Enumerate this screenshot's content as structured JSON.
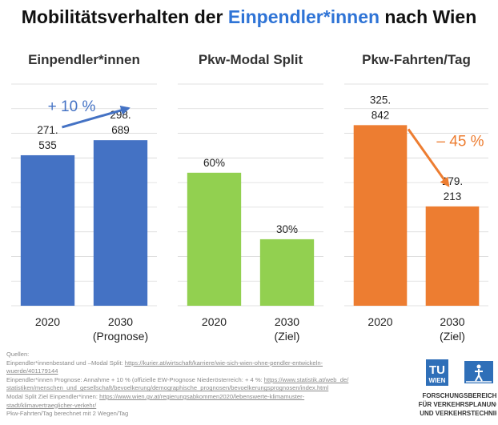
{
  "title": {
    "part1": "Mobilitätsverhalten der ",
    "highlight": "Einpendler*innen",
    "part2": " nach Wien"
  },
  "colors": {
    "blue": "#4472C4",
    "green": "#92D050",
    "orange": "#ED7D31",
    "grid": "#d9d9d9",
    "title_accent": "#2f74d6"
  },
  "chart_data": [
    {
      "type": "bar",
      "title": "Einpendler*innen",
      "categories": [
        "2020",
        "2030"
      ],
      "category_sublabels": [
        "",
        "(Prognose)"
      ],
      "values": [
        271535,
        298689
      ],
      "data_labels": [
        "271.\n535",
        "298.\n689"
      ],
      "color": "#4472C4",
      "ylim": [
        0,
        400000
      ],
      "grid": true,
      "annotation": {
        "text": "+ 10 %",
        "color": "#4472C4",
        "arrow": "from bar 1 to bar 2"
      }
    },
    {
      "type": "bar",
      "title": "Pkw-Modal  Split",
      "categories": [
        "2020",
        "2030"
      ],
      "category_sublabels": [
        "",
        "(Ziel)"
      ],
      "values": [
        60,
        30
      ],
      "data_labels": [
        "60%",
        "30%"
      ],
      "color": "#92D050",
      "ylim": [
        0,
        100
      ],
      "grid": true
    },
    {
      "type": "bar",
      "title": "Pkw-Fahrten/Tag",
      "categories": [
        "2020",
        "2030"
      ],
      "category_sublabels": [
        "",
        "(Ziel)"
      ],
      "values": [
        325842,
        179213
      ],
      "data_labels": [
        "325.\n842",
        "179.\n213"
      ],
      "color": "#ED7D31",
      "ylim": [
        0,
        400000
      ],
      "grid": true,
      "annotation": {
        "text": "– 45 %",
        "color": "#ED7D31",
        "arrow": "from bar 1 to bar 2"
      }
    }
  ],
  "sources": {
    "heading": "Quellen:",
    "lines": [
      {
        "text": "Einpendler*innenbestand  und –Modal Split: ",
        "link": "https://kurier.at/wirtschaft/karriere/wie-sich-wien-ohne-pendler-entwickeln-"
      },
      {
        "text": "",
        "link": "wuerde/401179144"
      },
      {
        "text": "Einpendler*innen  Prognose: Annahme  + 10 % (offizielle EW-Prognose  Niederösterreich:   + 4 %: ",
        "link": "https://www.statistik.at/web_de/"
      },
      {
        "text": "",
        "link": "statistiken/menschen_und_gesellschaft/bevoelkerung/demographische_prognosen/bevoelkerungsprognosen/index.html"
      },
      {
        "text": "Modal Split Ziel Einpendler*innen:  ",
        "link": "https://www.wien.gv.at/regierungsabkommen2020/lebenswerte-klimamuster-"
      },
      {
        "text": "",
        "link": "stadt/klimavertraeglicher-verkehr/"
      },
      {
        "text": "Pkw-Fahrten/Tag  berechnet  mit 2 Wegen/Tag",
        "link": ""
      }
    ]
  },
  "logo": {
    "text_tu": "TU",
    "text_wien": "WIEN",
    "caption": [
      "FORSCHUNGSBEREICH",
      "FÜR VERKEHRSPLANUNG",
      "UND VERKEHRSTECHNIK"
    ]
  }
}
